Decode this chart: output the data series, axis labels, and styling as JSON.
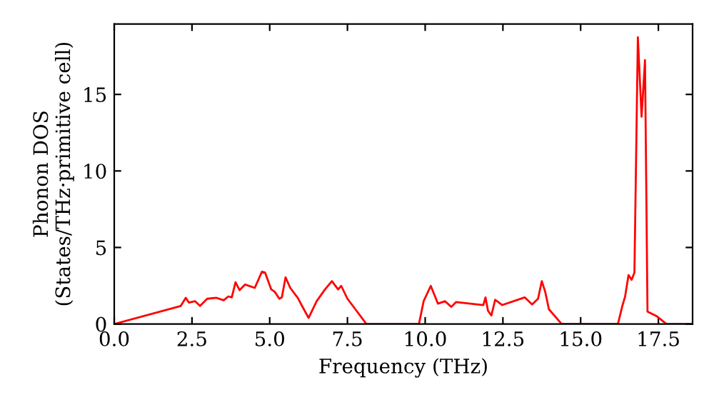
{
  "chart_data": {
    "type": "line",
    "xlabel": "Frequency (THz)",
    "ylabel": "Phonon DOS\n(States/THz·primitive cell)",
    "xlim": [
      0,
      18.6
    ],
    "ylim": [
      0,
      19.6
    ],
    "xticks": [
      {
        "value": 0,
        "label": "0.0"
      },
      2.5,
      {
        "value": 5,
        "label": "5.0"
      },
      7.5,
      {
        "value": 10,
        "label": "10.0"
      },
      12.5,
      {
        "value": 15,
        "label": "15.0"
      },
      17.5
    ],
    "yticks": [
      0,
      5,
      10,
      15
    ],
    "grid": false,
    "legend": false,
    "series": [
      {
        "color": "#ff0000",
        "x": [
          0,
          2.14,
          2.3,
          2.4,
          2.6,
          2.76,
          2.99,
          3.29,
          3.52,
          3.67,
          3.78,
          3.9,
          4.03,
          4.21,
          4.52,
          4.75,
          4.85,
          5.05,
          5.16,
          5.31,
          5.39,
          5.51,
          5.66,
          5.9,
          6.08,
          6.25,
          6.51,
          6.78,
          7.0,
          7.2,
          7.3,
          7.5,
          7.73,
          8.11,
          9.8,
          9.95,
          10.18,
          10.41,
          10.64,
          10.84,
          10.99,
          11.87,
          11.94,
          12.02,
          12.13,
          12.25,
          12.48,
          13.2,
          13.44,
          13.63,
          13.75,
          13.86,
          13.98,
          14.39,
          16.2,
          16.34,
          16.43,
          16.54,
          16.64,
          16.73,
          16.84,
          16.96,
          17.07,
          17.15,
          17.46,
          17.76,
          18.6
        ],
        "values": [
          0,
          1.18,
          1.71,
          1.4,
          1.49,
          1.18,
          1.65,
          1.71,
          1.55,
          1.8,
          1.74,
          2.73,
          2.21,
          2.58,
          2.36,
          3.42,
          3.36,
          2.26,
          2.11,
          1.65,
          1.74,
          3.05,
          2.36,
          1.71,
          1.03,
          0.4,
          1.49,
          2.26,
          2.8,
          2.26,
          2.49,
          1.65,
          1.03,
          0,
          0,
          1.49,
          2.49,
          1.33,
          1.49,
          1.12,
          1.43,
          1.24,
          1.74,
          0.87,
          0.56,
          1.58,
          1.24,
          1.74,
          1.28,
          1.65,
          2.8,
          2.11,
          0.96,
          0,
          0,
          1.18,
          1.8,
          3.2,
          2.89,
          3.36,
          18.73,
          13.54,
          17.24,
          0.81,
          0.49,
          0,
          0
        ]
      }
    ]
  }
}
